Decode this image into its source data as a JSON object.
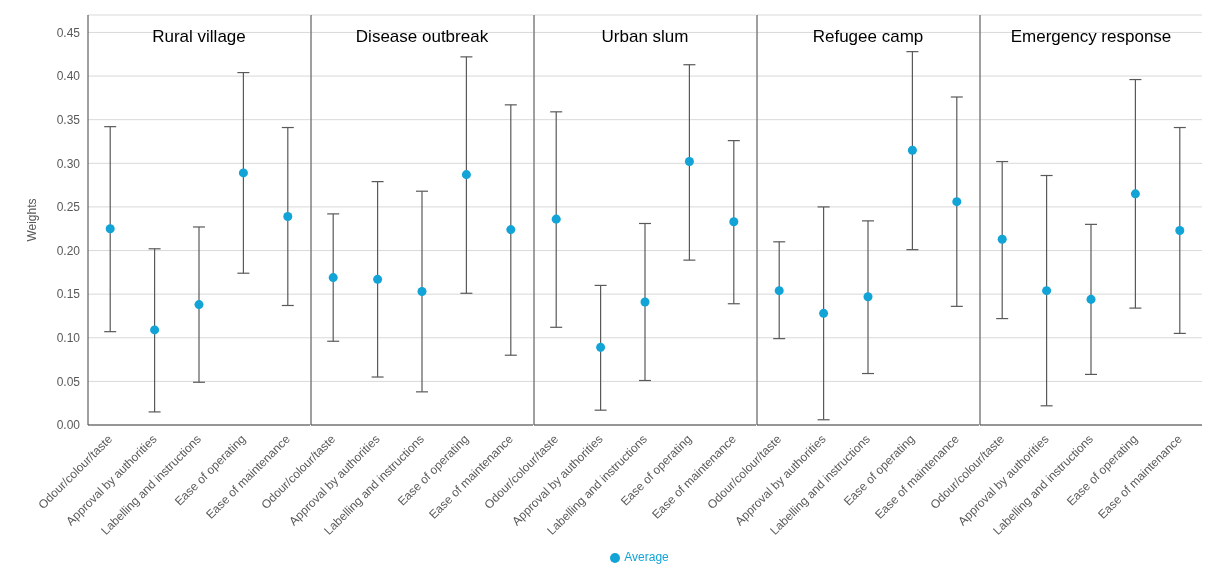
{
  "chart_data": [
    {
      "type": "scatter",
      "title": "Rural village",
      "ylabel": "Weights",
      "categories": [
        "Odour/colour/taste",
        "Approval by authorities",
        "Labelling and instructions",
        "Ease of operating",
        "Ease of maintenance"
      ],
      "series": [
        {
          "color": "#12a4d6",
          "values": [
            0.225,
            0.109,
            0.138,
            0.289,
            0.239
          ],
          "errors": [
            [
              0.107,
              0.342
            ],
            [
              0.015,
              0.202
            ],
            [
              0.049,
              0.227
            ],
            [
              0.174,
              0.404
            ],
            [
              0.137,
              0.341
            ]
          ]
        }
      ],
      "ylim": [
        0,
        0.47
      ],
      "yticks": [
        {
          "value": 0,
          "label": "0.00"
        },
        0.05,
        {
          "value": 0.1,
          "label": "0.10"
        },
        0.15,
        {
          "value": 0.2,
          "label": "0.20"
        },
        0.25,
        {
          "value": 0.3,
          "label": "0.30"
        },
        0.35,
        {
          "value": 0.4,
          "label": "0.40"
        },
        0.45
      ],
      "grid": "y",
      "marker": "circle"
    },
    {
      "type": "scatter",
      "title": "Disease outbreak",
      "categories": [
        "Odour/colour/taste",
        "Approval by authorities",
        "Labelling and instructions",
        "Ease of operating",
        "Ease of maintenance"
      ],
      "series": [
        {
          "color": "#12a4d6",
          "values": [
            0.169,
            0.167,
            0.153,
            0.287,
            0.224
          ],
          "errors": [
            [
              0.096,
              0.242
            ],
            [
              0.055,
              0.279
            ],
            [
              0.038,
              0.268
            ],
            [
              0.151,
              0.422
            ],
            [
              0.08,
              0.367
            ]
          ]
        }
      ],
      "ylim": [
        0,
        0.47
      ],
      "yticks": [
        0,
        0.05,
        0.1,
        0.15,
        0.2,
        0.25,
        0.3,
        0.35,
        0.4,
        0.45
      ],
      "grid": "y",
      "marker": "circle",
      "tick_labels": "x"
    },
    {
      "type": "scatter",
      "title": "Urban slum",
      "categories": [
        "Odour/colour/taste",
        "Approval by authorities",
        "Labelling and instructions",
        "Ease of operating",
        "Ease of maintenance"
      ],
      "series": [
        {
          "name": "Average",
          "color": "#12a4d6",
          "values": [
            0.236,
            0.089,
            0.141,
            0.302,
            0.233
          ],
          "errors": [
            [
              0.112,
              0.359
            ],
            [
              0.017,
              0.16
            ],
            [
              0.051,
              0.231
            ],
            [
              0.189,
              0.413
            ],
            [
              0.139,
              0.326
            ]
          ]
        }
      ],
      "ylim": [
        0,
        0.47
      ],
      "yticks": [
        0,
        0.05,
        0.1,
        0.15,
        0.2,
        0.25,
        0.3,
        0.35,
        0.4,
        0.45
      ],
      "grid": "y",
      "marker": "circle",
      "tick_labels": "x",
      "legend": "bottom"
    },
    {
      "type": "scatter",
      "title": "Refugee camp",
      "categories": [
        "Odour/colour/taste",
        "Approval by authorities",
        "Labelling and instructions",
        "Ease of operating",
        "Ease of maintenance"
      ],
      "series": [
        {
          "color": "#12a4d6",
          "values": [
            0.154,
            0.128,
            0.147,
            0.315,
            0.256
          ],
          "errors": [
            [
              0.099,
              0.21
            ],
            [
              0.006,
              0.25
            ],
            [
              0.059,
              0.234
            ],
            [
              0.201,
              0.428
            ],
            [
              0.136,
              0.376
            ]
          ]
        }
      ],
      "ylim": [
        0,
        0.47
      ],
      "yticks": [
        0,
        0.05,
        0.1,
        0.15,
        0.2,
        0.25,
        0.3,
        0.35,
        0.4,
        0.45
      ],
      "grid": "y",
      "marker": "circle",
      "tick_labels": "x"
    },
    {
      "type": "scatter",
      "title": "Emergency response",
      "categories": [
        "Odour/colour/taste",
        "Approval by authorities",
        "Labelling and instructions",
        "Ease of operating",
        "Ease of maintenance"
      ],
      "series": [
        {
          "color": "#12a4d6",
          "values": [
            0.213,
            0.154,
            0.144,
            0.265,
            0.223
          ],
          "errors": [
            [
              0.122,
              0.302
            ],
            [
              0.022,
              0.286
            ],
            [
              0.058,
              0.23
            ],
            [
              0.134,
              0.396
            ],
            [
              0.105,
              0.341
            ]
          ]
        }
      ],
      "ylim": [
        0,
        0.47
      ],
      "yticks": [
        0,
        0.05,
        0.1,
        0.15,
        0.2,
        0.25,
        0.3,
        0.35,
        0.4,
        0.45
      ],
      "grid": "y",
      "marker": "circle",
      "tick_labels": "x"
    }
  ]
}
